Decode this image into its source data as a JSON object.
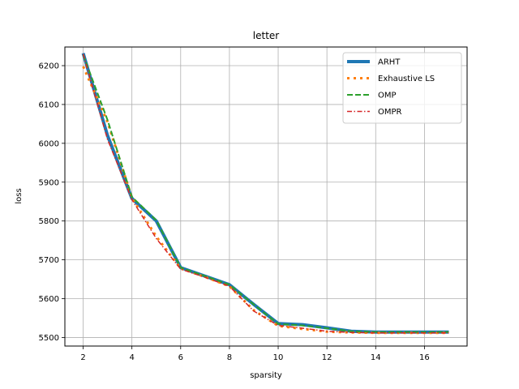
{
  "chart_data": {
    "type": "line",
    "title": "letter",
    "xlabel": "sparsity",
    "ylabel": "loss",
    "xlim": [
      1.25,
      17.75
    ],
    "ylim": [
      5478,
      6248
    ],
    "xticks": [
      2,
      4,
      6,
      8,
      10,
      12,
      14,
      16
    ],
    "yticks": [
      5500,
      5600,
      5700,
      5800,
      5900,
      6000,
      6100,
      6200
    ],
    "grid": true,
    "legend_position": "top-right",
    "x": [
      2,
      3,
      4,
      5,
      6,
      7,
      8,
      9,
      10,
      11,
      12,
      13,
      14,
      15,
      16,
      17
    ],
    "series": [
      {
        "name": "ARHT",
        "style": "solid-thick",
        "color": "#1f77b4",
        "values": [
          6232,
          6020,
          5858,
          5800,
          5680,
          5658,
          5636,
          5585,
          5536,
          5533,
          5525,
          5516,
          5514,
          5514,
          5514,
          5514
        ]
      },
      {
        "name": "Exhaustive LS",
        "style": "dotted",
        "color": "#ff7f0e",
        "values": [
          6198,
          6055,
          5860,
          5760,
          5678,
          5656,
          5632,
          5570,
          5530,
          5522,
          5515,
          5513,
          5512,
          5512,
          5512,
          5512
        ]
      },
      {
        "name": "OMP",
        "style": "dashed",
        "color": "#2ca02c",
        "values": [
          6228,
          6060,
          5862,
          5802,
          5680,
          5658,
          5636,
          5585,
          5535,
          5531,
          5524,
          5516,
          5514,
          5514,
          5514,
          5514
        ]
      },
      {
        "name": "OMPR",
        "style": "dashdot",
        "color": "#d62728",
        "values": [
          6230,
          6010,
          5855,
          5755,
          5676,
          5655,
          5632,
          5568,
          5531,
          5524,
          5516,
          5513,
          5512,
          5512,
          5512,
          5512
        ]
      }
    ]
  }
}
